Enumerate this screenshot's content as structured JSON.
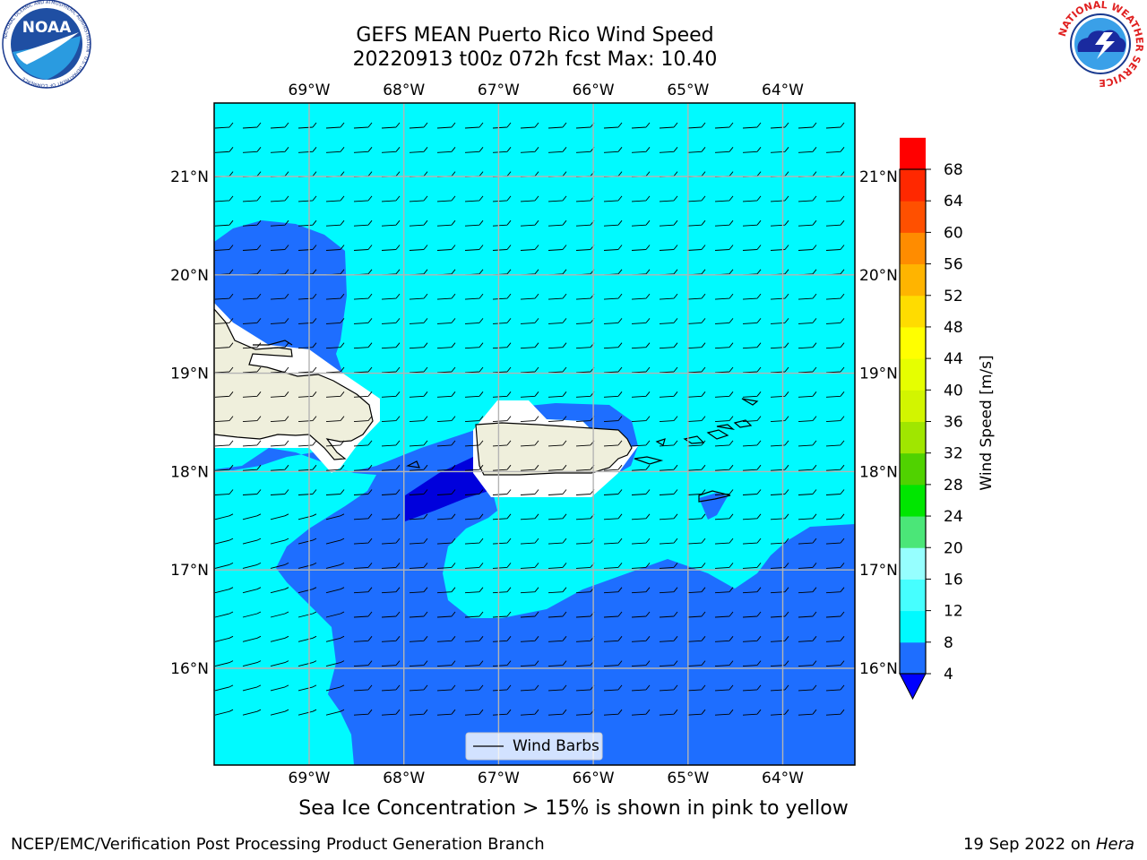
{
  "title": {
    "line1": "GEFS MEAN Puerto Rico Wind Speed",
    "line2": "20220913 t00z 072h fcst   Max: 10.40"
  },
  "subtitle": "Sea Ice Concentration > 15% is shown in pink to yellow",
  "footer": {
    "credit": "NCEP/EMC/Verification Post Processing Product Generation Branch",
    "date": "19 Sep 2022 on",
    "machine": "Hera"
  },
  "logos": {
    "left": "NOAA",
    "left_ring": "NATIONAL OCEANIC AND ATMOSPHERIC ADMINISTRATION · U.S. DEPARTMENT OF COMMERCE",
    "right_ring": "NATIONAL WEATHER SERVICE"
  },
  "map": {
    "lon_labels": [
      "69°W",
      "68°W",
      "67°W",
      "66°W",
      "65°W",
      "64°W"
    ],
    "lat_labels": [
      "21°N",
      "20°N",
      "19°N",
      "18°N",
      "17°N",
      "16°N"
    ],
    "lon_values": [
      -69,
      -68,
      -67,
      -66,
      -65,
      -64
    ],
    "lat_values": [
      21,
      20,
      19,
      18,
      17,
      16
    ],
    "legend_label": "Wind Barbs"
  },
  "colorbar": {
    "label": "Wind Speed [m/s]",
    "ticks": [
      "68",
      "64",
      "60",
      "56",
      "52",
      "48",
      "44",
      "40",
      "36",
      "32",
      "28",
      "24",
      "20",
      "16",
      "12",
      "8",
      "4"
    ],
    "levels": [
      4,
      8,
      12,
      16,
      20,
      24,
      28,
      32,
      36,
      40,
      44,
      48,
      52,
      56,
      60,
      64,
      68
    ],
    "colors": [
      "#1e6eff",
      "#00faff",
      "#46ffff",
      "#96ffff",
      "#4be678",
      "#00e600",
      "#50d200",
      "#a0e600",
      "#d2f500",
      "#e6ff00",
      "#ffff00",
      "#ffdc00",
      "#ffb400",
      "#ff8c00",
      "#ff5000",
      "#ff2800",
      "#ff0000"
    ],
    "under_color": "#0000ff"
  },
  "field_colors": {
    "c4_8": "#1e6eff",
    "c8_12": "#00faff",
    "lt4": "#0000dc",
    "land": "#efefdc",
    "nodata": "#ffffff"
  }
}
